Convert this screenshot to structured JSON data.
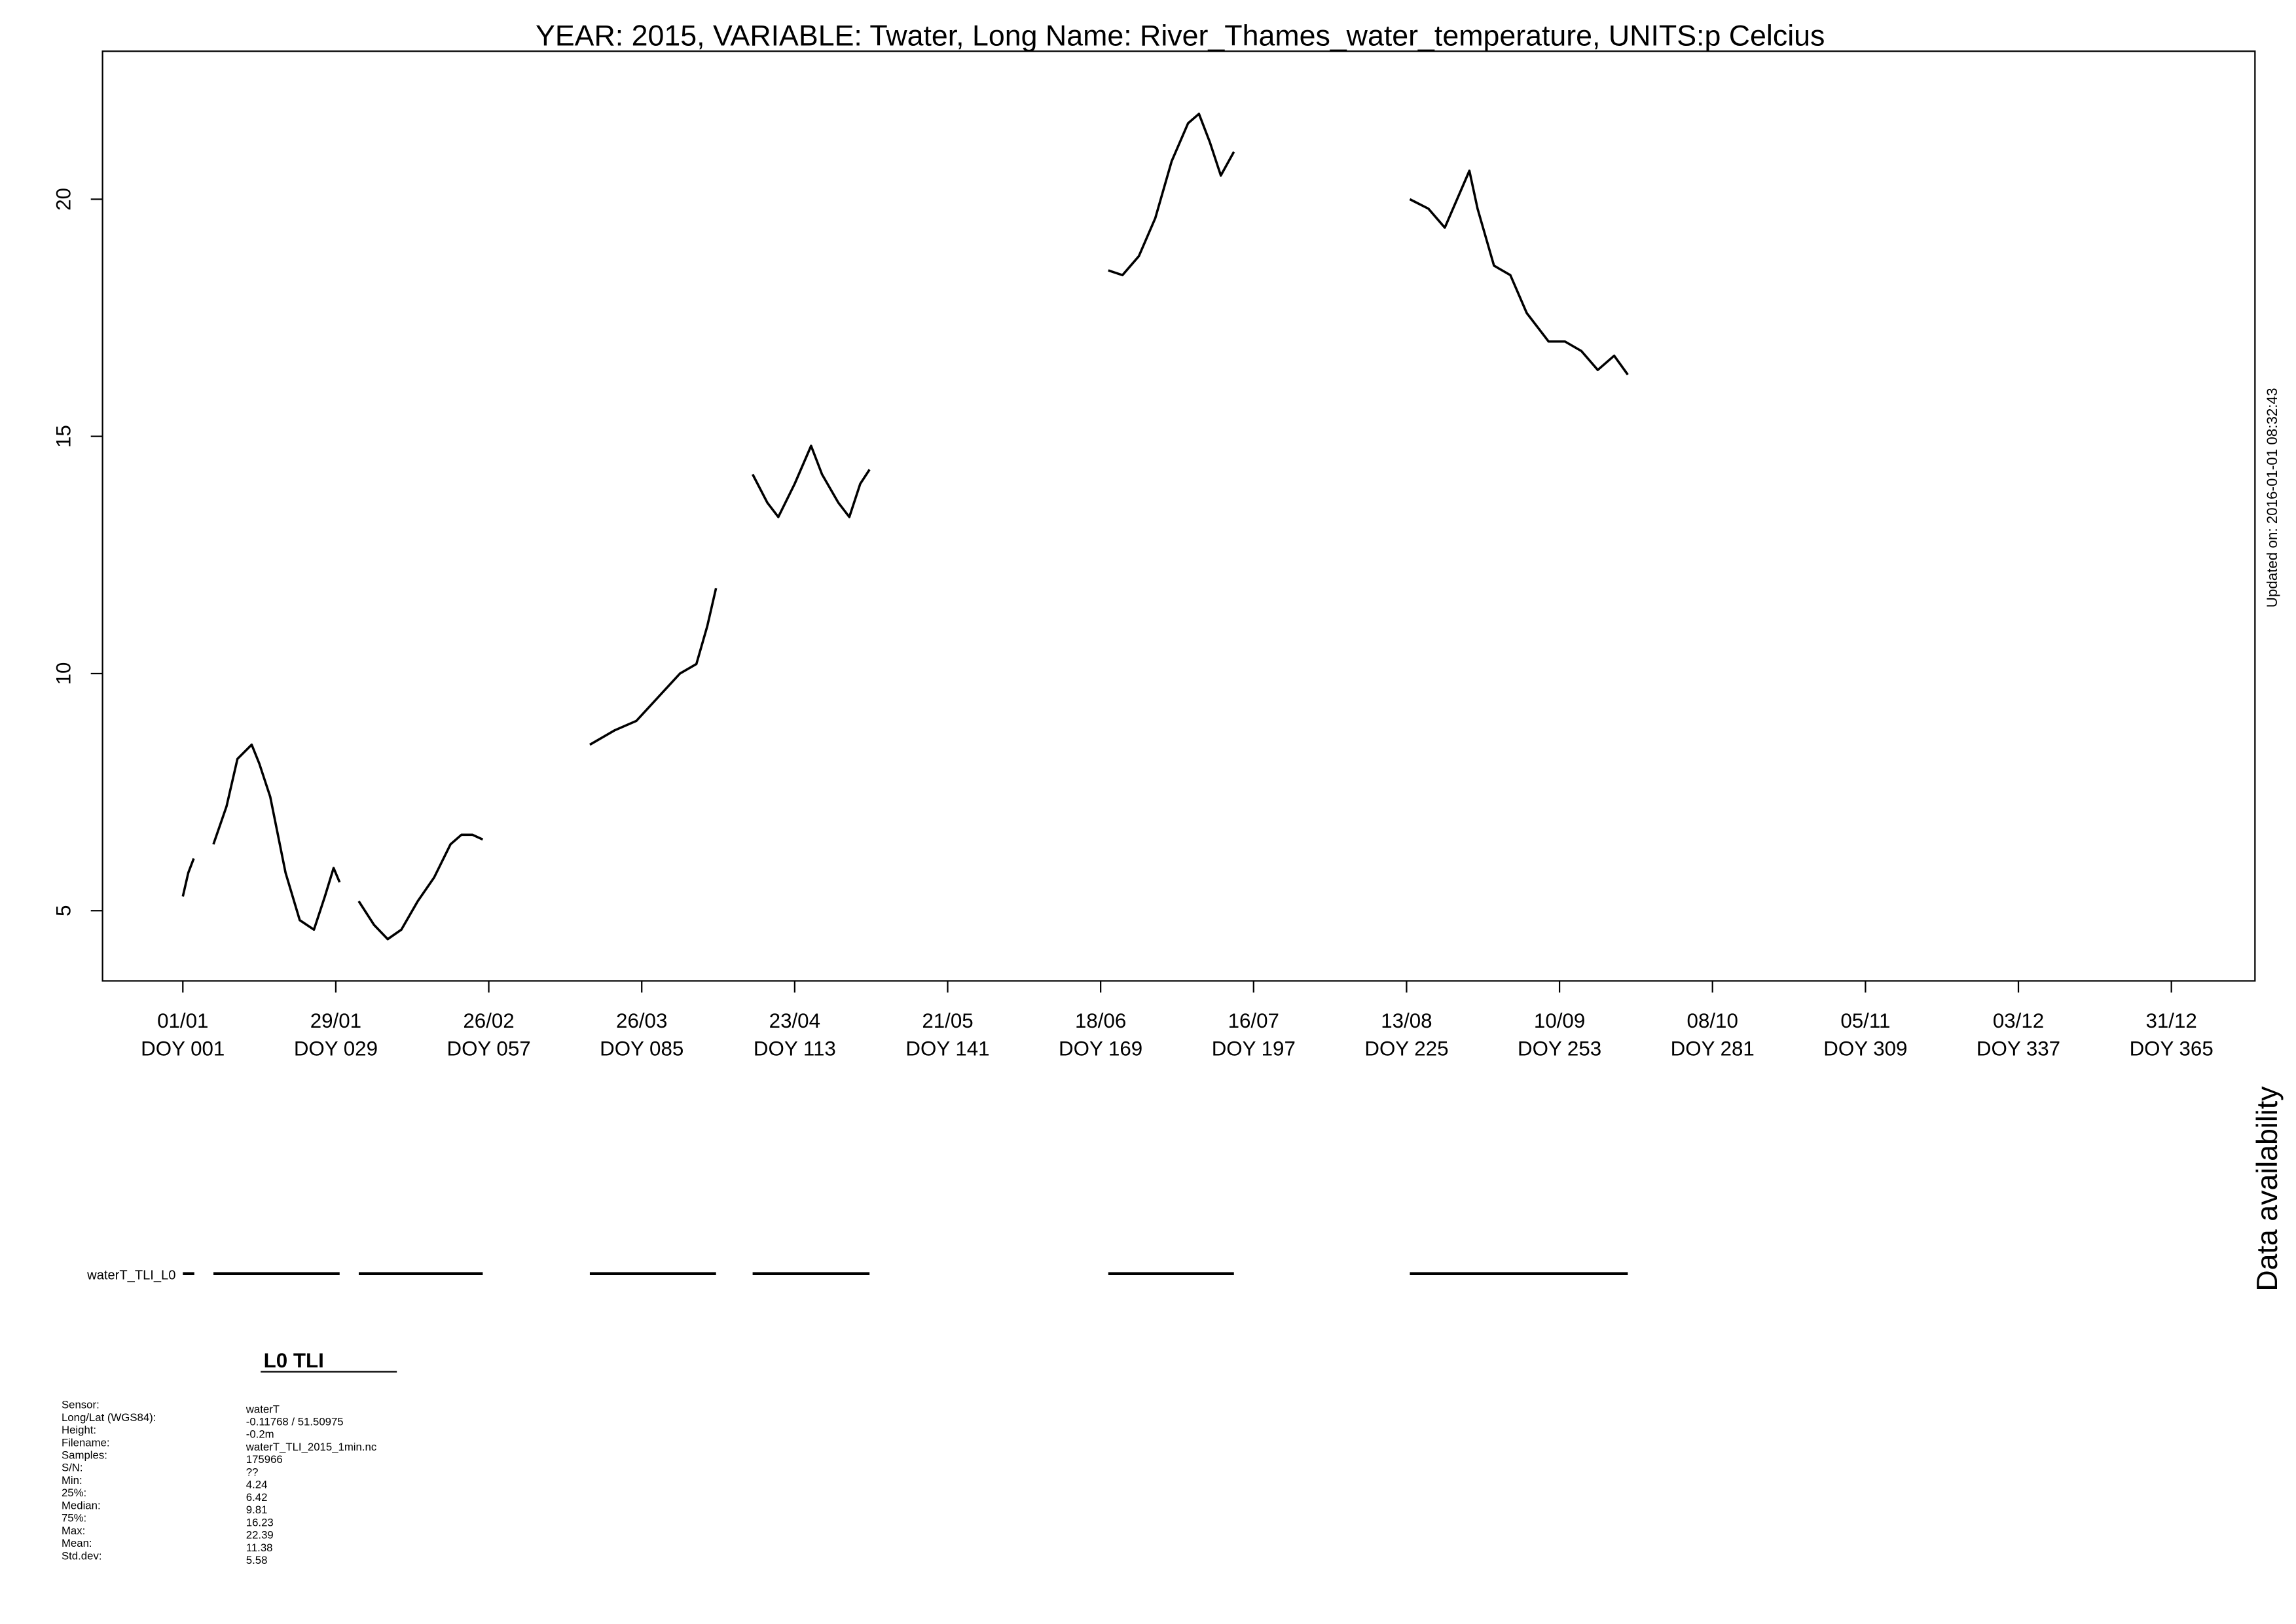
{
  "chart_data": {
    "type": "line",
    "title": "YEAR: 2015, VARIABLE: Twater, Long Name: River_Thames_water_temperature, UNITS:p Celcius",
    "annotation": "Updated on: 2016-01-01 08:32:43",
    "x": [
      1,
      2,
      3,
      5,
      6.6,
      9,
      11,
      13.6,
      15,
      17,
      19.8,
      22.4,
      25,
      27,
      28.6,
      29.7,
      31,
      33.2,
      36,
      38.5,
      41,
      44,
      47,
      50,
      52,
      54,
      55.9,
      65,
      75.5,
      80,
      84,
      88,
      92,
      95,
      97,
      98.6,
      102,
      105.3,
      108,
      110,
      113,
      116,
      118,
      121,
      123,
      125,
      126.7,
      150,
      170.4,
      173,
      176,
      179,
      182,
      185,
      187,
      189,
      191,
      193.4,
      210,
      225.6,
      229,
      232,
      235,
      236.5,
      238,
      241,
      244,
      247,
      251,
      254,
      257,
      260,
      263,
      265.5
    ],
    "series": [
      {
        "name": "waterT_TLI_L0",
        "color": "#000000",
        "values": [
          5.3,
          5.8,
          6.1,
          null,
          6.4,
          7.2,
          8.2,
          8.5,
          8.1,
          7.4,
          5.8,
          4.8,
          4.6,
          5.3,
          5.9,
          5.6,
          null,
          5.2,
          4.7,
          4.4,
          4.6,
          5.2,
          5.7,
          6.4,
          6.6,
          6.6,
          6.5,
          null,
          8.5,
          8.8,
          9.0,
          9.5,
          10.0,
          10.2,
          11.0,
          11.8,
          null,
          14.2,
          13.6,
          13.3,
          14.0,
          14.8,
          14.2,
          13.6,
          13.3,
          14.0,
          14.3,
          null,
          18.5,
          18.4,
          18.8,
          19.6,
          20.8,
          21.6,
          21.8,
          21.2,
          20.5,
          21.0,
          null,
          20.0,
          19.8,
          19.4,
          20.2,
          20.6,
          19.8,
          18.6,
          18.4,
          17.6,
          17.0,
          17.0,
          16.8,
          16.4,
          16.7,
          16.3
        ]
      }
    ],
    "xlim": [
      -13.7,
      380.3
    ],
    "ylim": [
      3.52,
      23.12
    ],
    "yticks": [
      5,
      10,
      15,
      20
    ],
    "xticks": [
      {
        "value": 1,
        "label": "01/01"
      },
      {
        "value": 29,
        "label": "29/01"
      },
      {
        "value": 57,
        "label": "26/02"
      },
      {
        "value": 85,
        "label": "26/03"
      },
      {
        "value": 113,
        "label": "23/04"
      },
      {
        "value": 141,
        "label": "21/05"
      },
      {
        "value": 169,
        "label": "18/06"
      },
      {
        "value": 197,
        "label": "16/07"
      },
      {
        "value": 225,
        "label": "13/08"
      },
      {
        "value": 253,
        "label": "10/09"
      },
      {
        "value": 281,
        "label": "08/10"
      },
      {
        "value": 309,
        "label": "05/11"
      },
      {
        "value": 337,
        "label": "03/12"
      },
      {
        "value": 365,
        "label": "31/12"
      }
    ],
    "xtick_sublabels": [
      "DOY 001",
      "DOY 029",
      "DOY 057",
      "DOY 085",
      "DOY 113",
      "DOY 141",
      "DOY 169",
      "DOY 197",
      "DOY 225",
      "DOY 253",
      "DOY 281",
      "DOY 309",
      "DOY 337",
      "DOY 365"
    ],
    "grid": false,
    "availability": {
      "title": "Data availability",
      "label": "waterT_TLI_L0",
      "segments": [
        [
          1,
          3.1
        ],
        [
          6.6,
          29.7
        ],
        [
          33.2,
          55.9
        ],
        [
          75.5,
          98.6
        ],
        [
          105.3,
          126.7
        ],
        [
          170.4,
          193.4
        ],
        [
          225.6,
          265.5
        ]
      ]
    },
    "info": {
      "title": "L0 TLI",
      "rows": [
        [
          "Sensor:",
          "waterT"
        ],
        [
          "Long/Lat (WGS84):",
          "-0.11768 / 51.50975"
        ],
        [
          "Height:",
          "-0.2m"
        ],
        [
          "Filename:",
          "waterT_TLI_2015_1min.nc"
        ],
        [
          "Samples:",
          "175966"
        ],
        [
          "S/N:",
          "??"
        ],
        [
          "Min:",
          "4.24"
        ],
        [
          "25%:",
          "6.42"
        ],
        [
          "Median:",
          "9.81"
        ],
        [
          "75%:",
          "16.23"
        ],
        [
          "Max:",
          "22.39"
        ],
        [
          "Mean:",
          "11.38"
        ],
        [
          "Std.dev:",
          "5.58"
        ]
      ]
    }
  }
}
